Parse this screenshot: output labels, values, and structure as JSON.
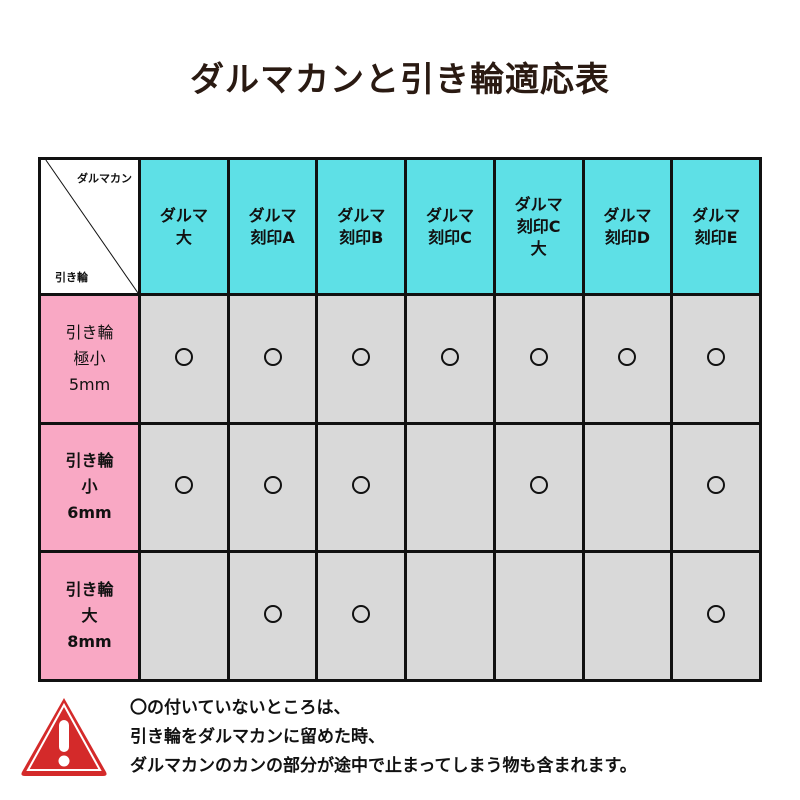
{
  "title": "ダルマカンと引き輪適応表",
  "corner": {
    "top_label": "ダルマカン",
    "bottom_label": "引き輪"
  },
  "columns": [
    "ダルマ\n大",
    "ダルマ\n刻印A",
    "ダルマ\n刻印B",
    "ダルマ\n刻印C",
    "ダルマ\n刻印C\n大",
    "ダルマ\n刻印D",
    "ダルマ\n刻印E"
  ],
  "rows": [
    {
      "label": "引き輪\n極小\n5mm",
      "bold": false,
      "marks": [
        true,
        true,
        true,
        true,
        true,
        true,
        true
      ]
    },
    {
      "label": "引き輪\n小\n6mm",
      "bold": true,
      "marks": [
        true,
        true,
        true,
        false,
        true,
        false,
        true
      ]
    },
    {
      "label": "引き輪\n大\n8mm",
      "bold": true,
      "marks": [
        false,
        true,
        true,
        false,
        false,
        false,
        true
      ]
    }
  ],
  "mark_symbol": "circle",
  "colors": {
    "header": "#5ee0e6",
    "row_header": "#f9a8c4",
    "cell": "#d9d9d9",
    "warning": "#d42a2a"
  },
  "warning_icon": "warning-triangle-icon",
  "note_lines": [
    "〇の付いていないところは、",
    "引き輪をダルマカンに留めた時、",
    "ダルマカンのカンの部分が途中で止まってしまう物も含まれます。"
  ]
}
